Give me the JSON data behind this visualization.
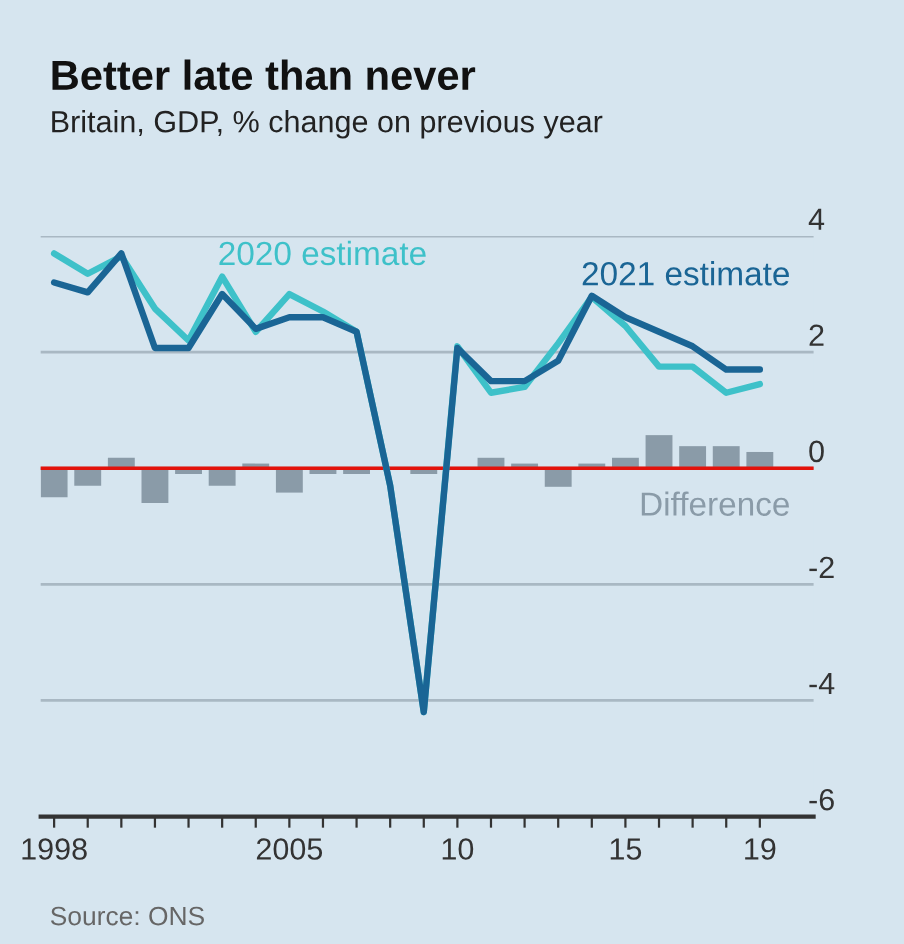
{
  "chart_data": {
    "type": "line",
    "title": "Better late than never",
    "subtitle": "Britain, GDP, % change on previous year",
    "x": [
      1998,
      1999,
      2000,
      2001,
      2002,
      2003,
      2004,
      2005,
      2006,
      2007,
      2008,
      2009,
      2010,
      2011,
      2012,
      2013,
      2014,
      2015,
      2016,
      2017,
      2018,
      2019
    ],
    "series": [
      {
        "name": "Difference",
        "type": "bar",
        "color": "#8a9ba8",
        "values": [
          -0.5,
          -0.3,
          0.18,
          -0.6,
          -0.1,
          -0.3,
          0.08,
          -0.42,
          -0.1,
          -0.1,
          null,
          -0.1,
          0,
          0.18,
          0.08,
          -0.32,
          0.08,
          0.18,
          0.57,
          0.38,
          0.38,
          0.28
        ]
      },
      {
        "name": "2020 estimate",
        "color": "#3ec1c9",
        "values": [
          3.7,
          3.35,
          3.65,
          2.75,
          2.2,
          3.3,
          2.35,
          3.0,
          2.7,
          2.35,
          -0.3,
          -4.2,
          2.1,
          1.3,
          1.4,
          2.15,
          2.95,
          2.45,
          1.75,
          1.75,
          1.3,
          1.45
        ]
      },
      {
        "name": "2021 estimate",
        "color": "#1a6595",
        "values": [
          3.2,
          3.03,
          3.7,
          2.07,
          2.07,
          3.0,
          2.4,
          2.6,
          2.6,
          2.35,
          -0.3,
          -4.2,
          2.07,
          1.5,
          1.5,
          1.85,
          2.97,
          2.6,
          2.35,
          2.1,
          1.7,
          1.7
        ]
      }
    ],
    "xlim": [
      1997.6,
      2020.6
    ],
    "xticks": [
      {
        "value": 1998,
        "label": "1998"
      },
      {
        "value": 1999,
        "label": null
      },
      {
        "value": 2000,
        "label": null
      },
      {
        "value": 2001,
        "label": null
      },
      {
        "value": 2002,
        "label": null
      },
      {
        "value": 2003,
        "label": null
      },
      {
        "value": 2004,
        "label": null
      },
      {
        "value": 2005,
        "label": "2005"
      },
      {
        "value": 2006,
        "label": null
      },
      {
        "value": 2007,
        "label": null
      },
      {
        "value": 2008,
        "label": null
      },
      {
        "value": 2009,
        "label": null
      },
      {
        "value": 2010,
        "label": "10"
      },
      {
        "value": 2011,
        "label": null
      },
      {
        "value": 2012,
        "label": null
      },
      {
        "value": 2013,
        "label": null
      },
      {
        "value": 2014,
        "label": null
      },
      {
        "value": 2015,
        "label": "15"
      },
      {
        "value": 2016,
        "label": null
      },
      {
        "value": 2017,
        "label": null
      },
      {
        "value": 2018,
        "label": null
      },
      {
        "value": 2019,
        "label": "19"
      }
    ],
    "ylim": [
      -6,
      4
    ],
    "yticks": [
      4,
      2,
      0,
      -2,
      -4,
      -6
    ],
    "ref_lines": [
      {
        "axis": "y",
        "value": 0,
        "color": "#e3120b"
      }
    ],
    "grid": "y",
    "legend": false,
    "annotations": [
      "Source: ONS"
    ]
  }
}
